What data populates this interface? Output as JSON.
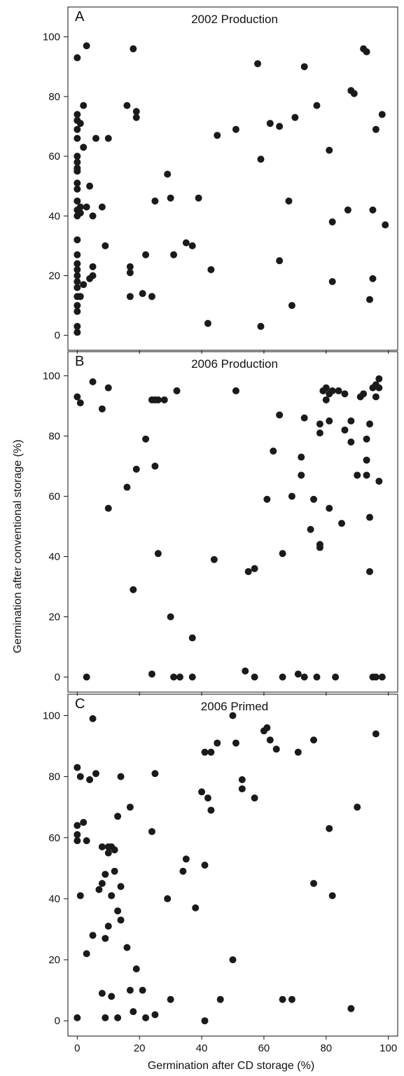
{
  "chart_data": [
    {
      "type": "scatter",
      "panel_label": "A",
      "title": "2002 Production",
      "xlim": [
        -3,
        103
      ],
      "ylim": [
        -5,
        110
      ],
      "yticks": [
        0,
        20,
        40,
        60,
        80,
        100
      ],
      "series": [
        {
          "points": [
            [
              0,
              93
            ],
            [
              0,
              74
            ],
            [
              0,
              72
            ],
            [
              0,
              69
            ],
            [
              0,
              66
            ],
            [
              0,
              60
            ],
            [
              0,
              58
            ],
            [
              0,
              56
            ],
            [
              0,
              55
            ],
            [
              0,
              51
            ],
            [
              0,
              49
            ],
            [
              0,
              45
            ],
            [
              0,
              42
            ],
            [
              0,
              40
            ],
            [
              0,
              32
            ],
            [
              0,
              27
            ],
            [
              0,
              24
            ],
            [
              0,
              22
            ],
            [
              0,
              20
            ],
            [
              0,
              18
            ],
            [
              0,
              16
            ],
            [
              0,
              13
            ],
            [
              0,
              10
            ],
            [
              0,
              8
            ],
            [
              0,
              3
            ],
            [
              0,
              1
            ],
            [
              1,
              43
            ],
            [
              1,
              41
            ],
            [
              1,
              13
            ],
            [
              1,
              71
            ],
            [
              2,
              77
            ],
            [
              2,
              63
            ],
            [
              2,
              17
            ],
            [
              3,
              97
            ],
            [
              3,
              43
            ],
            [
              4,
              50
            ],
            [
              4,
              19
            ],
            [
              5,
              40
            ],
            [
              5,
              23
            ],
            [
              5,
              20
            ],
            [
              6,
              66
            ],
            [
              8,
              43
            ],
            [
              9,
              30
            ],
            [
              10,
              66
            ],
            [
              16,
              77
            ],
            [
              17,
              23
            ],
            [
              17,
              21
            ],
            [
              17,
              13
            ],
            [
              18,
              96
            ],
            [
              19,
              75
            ],
            [
              19,
              73
            ],
            [
              21,
              14
            ],
            [
              22,
              27
            ],
            [
              24,
              13
            ],
            [
              25,
              45
            ],
            [
              29,
              54
            ],
            [
              30,
              46
            ],
            [
              31,
              27
            ],
            [
              35,
              31
            ],
            [
              37,
              30
            ],
            [
              39,
              46
            ],
            [
              42,
              4
            ],
            [
              43,
              22
            ],
            [
              45,
              67
            ],
            [
              51,
              69
            ],
            [
              58,
              91
            ],
            [
              59,
              3
            ],
            [
              59,
              59
            ],
            [
              62,
              71
            ],
            [
              65,
              70
            ],
            [
              65,
              25
            ],
            [
              68,
              45
            ],
            [
              69,
              10
            ],
            [
              70,
              73
            ],
            [
              73,
              90
            ],
            [
              77,
              77
            ],
            [
              81,
              62
            ],
            [
              82,
              38
            ],
            [
              82,
              18
            ],
            [
              87,
              42
            ],
            [
              88,
              82
            ],
            [
              89,
              81
            ],
            [
              92,
              96
            ],
            [
              93,
              95
            ],
            [
              94,
              12
            ],
            [
              95,
              42
            ],
            [
              95,
              19
            ],
            [
              96,
              69
            ],
            [
              98,
              74
            ],
            [
              99,
              37
            ]
          ]
        }
      ]
    },
    {
      "type": "scatter",
      "panel_label": "B",
      "title": "2006 Production",
      "xlim": [
        -3,
        103
      ],
      "ylim": [
        -5,
        108
      ],
      "yticks": [
        0,
        20,
        40,
        60,
        80,
        100
      ],
      "series": [
        {
          "points": [
            [
              0,
              93
            ],
            [
              1,
              91
            ],
            [
              3,
              0
            ],
            [
              5,
              98
            ],
            [
              8,
              89
            ],
            [
              10,
              96
            ],
            [
              10,
              56
            ],
            [
              16,
              63
            ],
            [
              18,
              29
            ],
            [
              19,
              69
            ],
            [
              22,
              79
            ],
            [
              24,
              92
            ],
            [
              24,
              1
            ],
            [
              25,
              70
            ],
            [
              25,
              92
            ],
            [
              26,
              92
            ],
            [
              26,
              41
            ],
            [
              28,
              92
            ],
            [
              30,
              20
            ],
            [
              31,
              0
            ],
            [
              32,
              95
            ],
            [
              33,
              0
            ],
            [
              37,
              0
            ],
            [
              37,
              13
            ],
            [
              44,
              39
            ],
            [
              51,
              95
            ],
            [
              54,
              2
            ],
            [
              55,
              35
            ],
            [
              57,
              36
            ],
            [
              57,
              0
            ],
            [
              61,
              59
            ],
            [
              63,
              75
            ],
            [
              65,
              87
            ],
            [
              66,
              41
            ],
            [
              66,
              0
            ],
            [
              69,
              60
            ],
            [
              71,
              1
            ],
            [
              72,
              67
            ],
            [
              72,
              73
            ],
            [
              73,
              86
            ],
            [
              73,
              0
            ],
            [
              75,
              49
            ],
            [
              76,
              59
            ],
            [
              77,
              0
            ],
            [
              78,
              81
            ],
            [
              78,
              84
            ],
            [
              78,
              43
            ],
            [
              78,
              44
            ],
            [
              79,
              95
            ],
            [
              80,
              96
            ],
            [
              80,
              92
            ],
            [
              81,
              85
            ],
            [
              81,
              56
            ],
            [
              81,
              94
            ],
            [
              82,
              95
            ],
            [
              83,
              0
            ],
            [
              84,
              95
            ],
            [
              85,
              51
            ],
            [
              86,
              94
            ],
            [
              86,
              82
            ],
            [
              88,
              85
            ],
            [
              88,
              78
            ],
            [
              90,
              67
            ],
            [
              91,
              93
            ],
            [
              92,
              94
            ],
            [
              93,
              79
            ],
            [
              93,
              72
            ],
            [
              93,
              67
            ],
            [
              94,
              84
            ],
            [
              94,
              53
            ],
            [
              94,
              35
            ],
            [
              95,
              96
            ],
            [
              95,
              0
            ],
            [
              96,
              0
            ],
            [
              96,
              93
            ],
            [
              96,
              97
            ],
            [
              97,
              96
            ],
            [
              97,
              99
            ],
            [
              97,
              65
            ],
            [
              98,
              0
            ]
          ]
        }
      ]
    },
    {
      "type": "scatter",
      "panel_label": "C",
      "title": "2006 Primed",
      "xlim": [
        -3,
        103
      ],
      "ylim": [
        -5,
        107
      ],
      "yticks": [
        0,
        20,
        40,
        60,
        80,
        100
      ],
      "xticks": [
        0,
        20,
        40,
        60,
        80,
        100
      ],
      "xlabel": "Germination after CD storage (%)",
      "series": [
        {
          "points": [
            [
              0,
              83
            ],
            [
              0,
              64
            ],
            [
              0,
              61
            ],
            [
              0,
              59
            ],
            [
              0,
              1
            ],
            [
              1,
              80
            ],
            [
              1,
              41
            ],
            [
              2,
              65
            ],
            [
              3,
              59
            ],
            [
              3,
              22
            ],
            [
              4,
              79
            ],
            [
              5,
              99
            ],
            [
              5,
              28
            ],
            [
              6,
              81
            ],
            [
              7,
              43
            ],
            [
              8,
              57
            ],
            [
              8,
              9
            ],
            [
              8,
              45
            ],
            [
              9,
              48
            ],
            [
              9,
              27
            ],
            [
              9,
              1
            ],
            [
              10,
              57
            ],
            [
              10,
              55
            ],
            [
              10,
              31
            ],
            [
              11,
              41
            ],
            [
              11,
              57
            ],
            [
              11,
              8
            ],
            [
              12,
              56
            ],
            [
              12,
              49
            ],
            [
              13,
              67
            ],
            [
              13,
              36
            ],
            [
              13,
              1
            ],
            [
              14,
              80
            ],
            [
              14,
              44
            ],
            [
              14,
              33
            ],
            [
              16,
              24
            ],
            [
              17,
              70
            ],
            [
              17,
              10
            ],
            [
              18,
              3
            ],
            [
              19,
              17
            ],
            [
              21,
              10
            ],
            [
              22,
              1
            ],
            [
              24,
              62
            ],
            [
              25,
              81
            ],
            [
              25,
              2
            ],
            [
              29,
              40
            ],
            [
              30,
              7
            ],
            [
              34,
              49
            ],
            [
              35,
              53
            ],
            [
              38,
              37
            ],
            [
              40,
              75
            ],
            [
              41,
              88
            ],
            [
              41,
              51
            ],
            [
              41,
              0
            ],
            [
              42,
              73
            ],
            [
              43,
              69
            ],
            [
              43,
              88
            ],
            [
              45,
              91
            ],
            [
              46,
              7
            ],
            [
              50,
              100
            ],
            [
              50,
              20
            ],
            [
              51,
              91
            ],
            [
              53,
              76
            ],
            [
              53,
              79
            ],
            [
              57,
              73
            ],
            [
              60,
              95
            ],
            [
              61,
              96
            ],
            [
              62,
              92
            ],
            [
              64,
              89
            ],
            [
              66,
              7
            ],
            [
              69,
              7
            ],
            [
              71,
              88
            ],
            [
              76,
              92
            ],
            [
              76,
              45
            ],
            [
              81,
              63
            ],
            [
              82,
              41
            ],
            [
              88,
              4
            ],
            [
              90,
              70
            ],
            [
              96,
              94
            ]
          ]
        }
      ]
    }
  ],
  "y_axis_label": "Germination after conventional storage (%)"
}
